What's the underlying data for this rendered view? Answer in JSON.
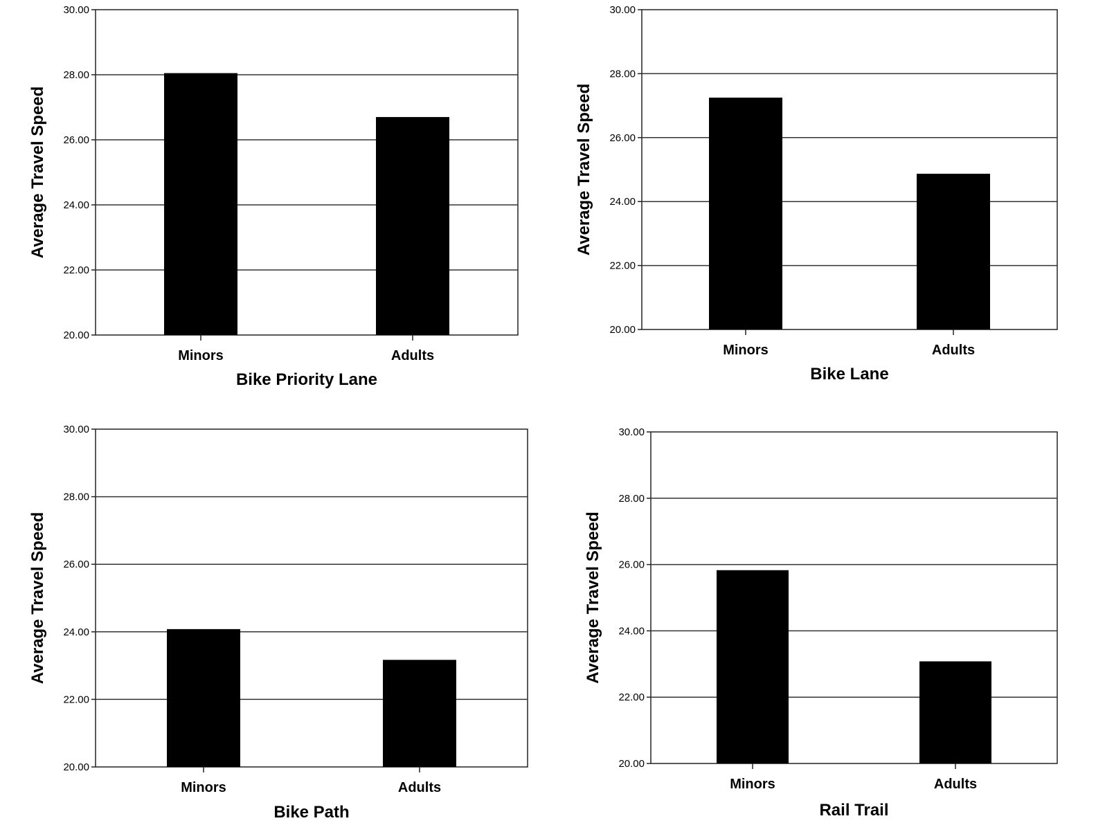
{
  "chart_data": [
    {
      "type": "bar",
      "categories": [
        "Minors",
        "Adults"
      ],
      "values": [
        28.05,
        26.7
      ],
      "xlabel": "Bike Priority Lane",
      "ylabel": "Average Travel Speed",
      "ylim": [
        20,
        30
      ],
      "yticks": [
        "20.00",
        "22.00",
        "24.00",
        "26.00",
        "28.00",
        "30.00"
      ],
      "grid": true,
      "bar_color": "#000000"
    },
    {
      "type": "bar",
      "categories": [
        "Minors",
        "Adults"
      ],
      "values": [
        27.25,
        24.87
      ],
      "xlabel": "Bike Lane",
      "ylabel": "Average Travel Speed",
      "ylim": [
        20,
        30
      ],
      "yticks": [
        "20.00",
        "22.00",
        "24.00",
        "26.00",
        "28.00",
        "30.00"
      ],
      "grid": true,
      "bar_color": "#000000"
    },
    {
      "type": "bar",
      "categories": [
        "Minors",
        "Adults"
      ],
      "values": [
        24.08,
        23.17
      ],
      "xlabel": "Bike Path",
      "ylabel": "Average Travel Speed",
      "ylim": [
        20,
        30
      ],
      "yticks": [
        "20.00",
        "22.00",
        "24.00",
        "26.00",
        "28.00",
        "30.00"
      ],
      "grid": true,
      "bar_color": "#000000"
    },
    {
      "type": "bar",
      "categories": [
        "Minors",
        "Adults"
      ],
      "values": [
        25.83,
        23.08
      ],
      "xlabel": "Rail Trail",
      "ylabel": "Average Travel Speed",
      "ylim": [
        20,
        30
      ],
      "yticks": [
        "20.00",
        "22.00",
        "24.00",
        "26.00",
        "28.00",
        "30.00"
      ],
      "grid": true,
      "bar_color": "#000000"
    }
  ]
}
